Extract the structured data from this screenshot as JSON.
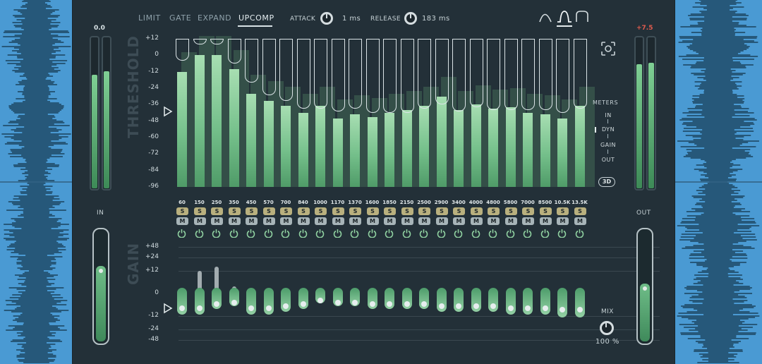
{
  "tabs": [
    {
      "label": "LIMIT",
      "active": false
    },
    {
      "label": "GATE",
      "active": false
    },
    {
      "label": "EXPAND",
      "active": false
    },
    {
      "label": "UPCOMP",
      "active": true
    }
  ],
  "attack": {
    "label": "ATTACK",
    "value": "1 ms"
  },
  "release": {
    "label": "RELEASE",
    "value": "183 ms"
  },
  "shapes": [
    "shape-sharp-icon",
    "shape-bell-icon",
    "shape-flat-icon"
  ],
  "in_meter": {
    "peak": "0.0",
    "label": "IN",
    "levels": [
      0.75,
      0.77
    ],
    "gain_level": 0.68
  },
  "out_meter": {
    "peak": "+7.5",
    "label": "OUT",
    "levels": [
      0.82,
      0.83
    ],
    "gain_level": 0.52
  },
  "threshold": {
    "title": "THRESHOLD",
    "scale": [
      "+12",
      "0",
      "-12",
      "-24",
      "-36",
      "-48",
      "-60",
      "-72",
      "-84",
      "-96"
    ]
  },
  "gain": {
    "title": "GAIN",
    "scale": [
      "+48",
      "+24",
      "+12",
      "0",
      "-12",
      "-24",
      "-48"
    ]
  },
  "meters": {
    "title": "METERS",
    "options": [
      "IN",
      "DYN",
      "GAIN",
      "OUT"
    ],
    "selected": "DYN",
    "mode_3d": "3D"
  },
  "mix": {
    "label": "MIX",
    "value": "100 %"
  },
  "solo_label": "S",
  "mute_label": "M",
  "bands": [
    {
      "freq": "60",
      "threshold": -4,
      "level": -12,
      "gain": -4
    },
    {
      "freq": "150",
      "threshold": 8,
      "level": 0,
      "gain": -4
    },
    {
      "freq": "250",
      "threshold": 8,
      "level": 0,
      "gain": -2
    },
    {
      "freq": "350",
      "threshold": -6,
      "level": -10,
      "gain": -1
    },
    {
      "freq": "450",
      "threshold": -20,
      "level": -28,
      "gain": -4
    },
    {
      "freq": "570",
      "threshold": -29,
      "level": -33,
      "gain": -4
    },
    {
      "freq": "700",
      "threshold": -33,
      "level": -37,
      "gain": -3
    },
    {
      "freq": "840",
      "threshold": -39,
      "level": -42,
      "gain": -2
    },
    {
      "freq": "1000",
      "threshold": -39,
      "level": -37,
      "gain": 0
    },
    {
      "freq": "1170",
      "threshold": -41,
      "level": -46,
      "gain": -1
    },
    {
      "freq": "1370",
      "threshold": -39,
      "level": -43,
      "gain": -1
    },
    {
      "freq": "1600",
      "threshold": -42,
      "level": -45,
      "gain": -2
    },
    {
      "freq": "1850",
      "threshold": -42,
      "level": -42,
      "gain": -2
    },
    {
      "freq": "2150",
      "threshold": -42,
      "level": -40,
      "gain": -2
    },
    {
      "freq": "2500",
      "threshold": -39,
      "level": -37,
      "gain": -2
    },
    {
      "freq": "2900",
      "threshold": -36,
      "level": -30,
      "gain": -3
    },
    {
      "freq": "3400",
      "threshold": -41,
      "level": -40,
      "gain": -3
    },
    {
      "freq": "4000",
      "threshold": -38,
      "level": -36,
      "gain": -3
    },
    {
      "freq": "4800",
      "threshold": -40,
      "level": -39,
      "gain": -3
    },
    {
      "freq": "5800",
      "threshold": -40,
      "level": -38,
      "gain": -4
    },
    {
      "freq": "7000",
      "threshold": -40,
      "level": -42,
      "gain": -4
    },
    {
      "freq": "8500",
      "threshold": -40,
      "level": -43,
      "gain": -4
    },
    {
      "freq": "10.5K",
      "threshold": -42,
      "level": -46,
      "gain": -5
    },
    {
      "freq": "13.5K",
      "threshold": -39,
      "level": -37,
      "gain": -5
    }
  ]
}
